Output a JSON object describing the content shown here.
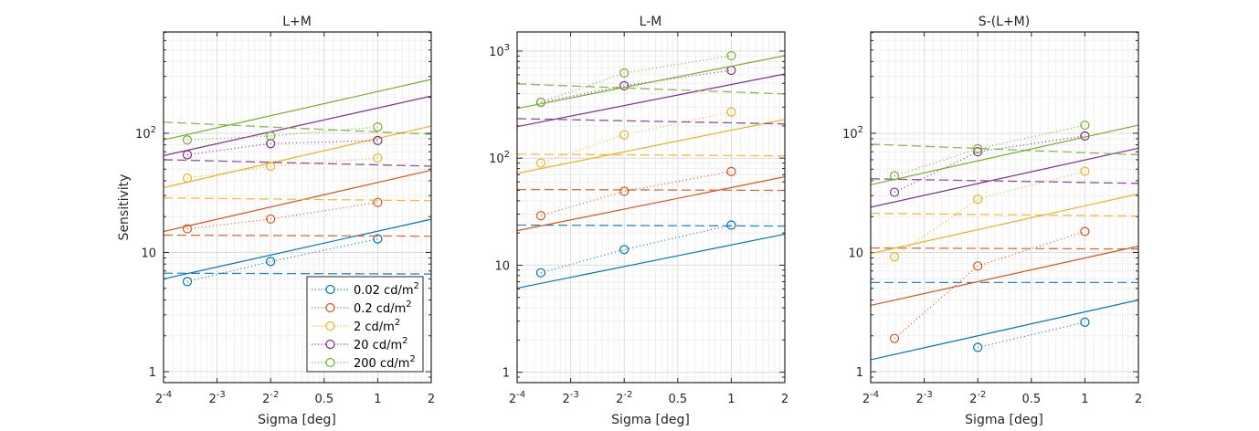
{
  "chart_data": [
    {
      "type": "line",
      "title": "L+M",
      "xlabel": "Sigma [deg]",
      "ylabel": "Sensitivity",
      "xscale": "log2",
      "yscale": "log10",
      "xlim": [
        0.0625,
        2
      ],
      "ylim": [
        0.81,
        708
      ],
      "grid": true,
      "xticks": [
        {
          "value": 0.0625,
          "base": "2",
          "exp": "-4"
        },
        {
          "value": 0.125,
          "base": "2",
          "exp": "-3"
        },
        {
          "value": 0.25,
          "base": "2",
          "exp": "-2"
        },
        {
          "value": 0.5,
          "label": "0.5"
        },
        {
          "value": 1,
          "label": "1"
        },
        {
          "value": 2,
          "label": "2"
        }
      ],
      "yticks": [
        {
          "value": 1,
          "label": "1"
        },
        {
          "value": 10,
          "label": "10"
        },
        {
          "value": 100,
          "base": "10",
          "exp": "2"
        }
      ],
      "legend": {
        "placement": "bottom-right",
        "entries": [
          "0.02 cd/m",
          "0.2 cd/m",
          "2 cd/m",
          "20 cd/m",
          "200 cd/m"
        ],
        "superscript": "2"
      },
      "series": [
        {
          "name": "0.02 cd/m2",
          "color": "#0072BD",
          "measured": {
            "x": [
              0.085,
              0.25,
              1
            ],
            "y": [
              5.7,
              8.4,
              13.0
            ]
          },
          "model_fit": {
            "x": [
              0.0625,
              2
            ],
            "y": [
              6.0,
              19.0
            ]
          },
          "model_dashed": {
            "x": [
              0.0625,
              2
            ],
            "y": [
              6.7,
              6.6
            ]
          }
        },
        {
          "name": "0.2 cd/m2",
          "color": "#D95319",
          "measured": {
            "x": [
              0.085,
              0.25,
              1
            ],
            "y": [
              15.8,
              19.1,
              26.3
            ]
          },
          "model_fit": {
            "x": [
              0.0625,
              2
            ],
            "y": [
              15.0,
              49.0
            ]
          },
          "model_dashed": {
            "x": [
              0.0625,
              2
            ],
            "y": [
              14.0,
              13.7
            ]
          }
        },
        {
          "name": "2 cd/m2",
          "color": "#EDB120",
          "measured": {
            "x": [
              0.085,
              0.25,
              1
            ],
            "y": [
              42,
              53,
              62
            ]
          },
          "model_fit": {
            "x": [
              0.0625,
              2
            ],
            "y": [
              35,
              115
            ]
          },
          "model_dashed": {
            "x": [
              0.0625,
              2
            ],
            "y": [
              28.7,
              27.2
            ]
          }
        },
        {
          "name": "20 cd/m2",
          "color": "#7E2F8E",
          "measured": {
            "x": [
              0.085,
              0.25,
              1
            ],
            "y": [
              66,
              82,
              87
            ]
          },
          "model_fit": {
            "x": [
              0.0625,
              2
            ],
            "y": [
              65,
              205
            ]
          },
          "model_dashed": {
            "x": [
              0.0625,
              2
            ],
            "y": [
              60,
              53
            ]
          }
        },
        {
          "name": "200 cd/m2",
          "color": "#77AC30",
          "measured": {
            "x": [
              0.085,
              0.25,
              1
            ],
            "y": [
              88,
              95,
              113
            ]
          },
          "model_fit": {
            "x": [
              0.0625,
              2
            ],
            "y": [
              88,
              283
            ]
          },
          "model_dashed": {
            "x": [
              0.0625,
              2
            ],
            "y": [
              124,
              98
            ]
          }
        }
      ]
    },
    {
      "type": "line",
      "title": "L-M",
      "xlabel": "Sigma [deg]",
      "ylabel": "",
      "xscale": "log2",
      "yscale": "log10",
      "xlim": [
        0.0625,
        2
      ],
      "ylim": [
        0.8,
        1510
      ],
      "grid": true,
      "xticks": [
        {
          "value": 0.0625,
          "base": "2",
          "exp": "-4"
        },
        {
          "value": 0.125,
          "base": "2",
          "exp": "-3"
        },
        {
          "value": 0.25,
          "base": "2",
          "exp": "-2"
        },
        {
          "value": 0.5,
          "label": "0.5"
        },
        {
          "value": 1,
          "label": "1"
        },
        {
          "value": 2,
          "label": "2"
        }
      ],
      "yticks": [
        {
          "value": 1,
          "label": "1"
        },
        {
          "value": 10,
          "label": "10"
        },
        {
          "value": 100,
          "base": "10",
          "exp": "2"
        },
        {
          "value": 1000,
          "base": "10",
          "exp": "3"
        }
      ],
      "series": [
        {
          "name": "0.02 cd/m2",
          "color": "#0072BD",
          "measured": {
            "x": [
              0.085,
              0.25,
              1
            ],
            "y": [
              8.5,
              14,
              23.7
            ]
          },
          "model_fit": {
            "x": [
              0.0625,
              2
            ],
            "y": [
              6.1,
              19.5
            ]
          },
          "model_dashed": {
            "x": [
              0.0625,
              2
            ],
            "y": [
              23.7,
              23.2
            ]
          }
        },
        {
          "name": "0.2 cd/m2",
          "color": "#D95319",
          "measured": {
            "x": [
              0.085,
              0.25,
              1
            ],
            "y": [
              29,
              49,
              75
            ]
          },
          "model_fit": {
            "x": [
              0.0625,
              2
            ],
            "y": [
              21,
              67
            ]
          },
          "model_dashed": {
            "x": [
              0.0625,
              2
            ],
            "y": [
              51,
              50
            ]
          }
        },
        {
          "name": "2 cd/m2",
          "color": "#EDB120",
          "measured": {
            "x": [
              0.085,
              0.25,
              1
            ],
            "y": [
              90,
              165,
              270
            ]
          },
          "model_fit": {
            "x": [
              0.0625,
              2
            ],
            "y": [
              72,
              230
            ]
          },
          "model_dashed": {
            "x": [
              0.0625,
              2
            ],
            "y": [
              109,
              105
            ]
          }
        },
        {
          "name": "20 cd/m2",
          "color": "#7E2F8E",
          "measured": {
            "x": [
              0.085,
              0.25,
              1
            ],
            "y": [
              333,
              475,
              662
            ]
          },
          "model_fit": {
            "x": [
              0.0625,
              2
            ],
            "y": [
              197,
              612
            ]
          },
          "model_dashed": {
            "x": [
              0.0625,
              2
            ],
            "y": [
              234,
              209
            ]
          }
        },
        {
          "name": "200 cd/m2",
          "color": "#77AC30",
          "measured": {
            "x": [
              0.085,
              0.25,
              1
            ],
            "y": [
              333,
              625,
              905
            ]
          },
          "model_fit": {
            "x": [
              0.0625,
              2
            ],
            "y": [
              291,
              906
            ]
          },
          "model_dashed": {
            "x": [
              0.0625,
              2
            ],
            "y": [
              494,
              398
            ]
          }
        }
      ]
    },
    {
      "type": "line",
      "title": "S-(L+M)",
      "xlabel": "Sigma [deg]",
      "ylabel": "",
      "xscale": "log2",
      "yscale": "log10",
      "xlim": [
        0.0625,
        2
      ],
      "ylim": [
        0.81,
        708
      ],
      "grid": true,
      "xticks": [
        {
          "value": 0.0625,
          "base": "2",
          "exp": "-4"
        },
        {
          "value": 0.125,
          "base": "2",
          "exp": "-3"
        },
        {
          "value": 0.25,
          "base": "2",
          "exp": "-2"
        },
        {
          "value": 0.5,
          "label": "0.5"
        },
        {
          "value": 1,
          "label": "1"
        },
        {
          "value": 2,
          "label": "2"
        }
      ],
      "yticks": [
        {
          "value": 1,
          "label": "1"
        },
        {
          "value": 10,
          "label": "10"
        },
        {
          "value": 100,
          "base": "10",
          "exp": "2"
        }
      ],
      "series": [
        {
          "name": "0.02 cd/m2",
          "color": "#0072BD",
          "measured": {
            "x": [
              0.25,
              1
            ],
            "y": [
              1.6,
              2.6
            ]
          },
          "model_fit": {
            "x": [
              0.0625,
              2
            ],
            "y": [
              1.26,
              4.0
            ]
          },
          "model_dashed": {
            "x": [
              0.0625,
              2
            ],
            "y": [
              5.6,
              5.6
            ]
          }
        },
        {
          "name": "0.2 cd/m2",
          "color": "#D95319",
          "measured": {
            "x": [
              0.085,
              0.25,
              1
            ],
            "y": [
              1.9,
              7.7,
              15
            ]
          },
          "model_fit": {
            "x": [
              0.0625,
              2
            ],
            "y": [
              3.6,
              11.3
            ]
          },
          "model_dashed": {
            "x": [
              0.0625,
              2
            ],
            "y": [
              10.9,
              10.7
            ]
          }
        },
        {
          "name": "2 cd/m2",
          "color": "#EDB120",
          "measured": {
            "x": [
              0.085,
              0.25,
              1
            ],
            "y": [
              9.2,
              28,
              48
            ]
          },
          "model_fit": {
            "x": [
              0.0625,
              2
            ],
            "y": [
              9.8,
              31
            ]
          },
          "model_dashed": {
            "x": [
              0.0625,
              2
            ],
            "y": [
              21.3,
              20.2
            ]
          }
        },
        {
          "name": "20 cd/m2",
          "color": "#7E2F8E",
          "measured": {
            "x": [
              0.085,
              0.25,
              1
            ],
            "y": [
              32,
              70,
              95
            ]
          },
          "model_fit": {
            "x": [
              0.0625,
              2
            ],
            "y": [
              24,
              75
            ]
          },
          "model_dashed": {
            "x": [
              0.0625,
              2
            ],
            "y": [
              41.5,
              38
            ]
          }
        },
        {
          "name": "200 cd/m2",
          "color": "#77AC30",
          "measured": {
            "x": [
              0.085,
              0.25,
              1
            ],
            "y": [
              44,
              74,
              117
            ]
          },
          "model_fit": {
            "x": [
              0.0625,
              2
            ],
            "y": [
              37,
              117
            ]
          },
          "model_dashed": {
            "x": [
              0.0625,
              2
            ],
            "y": [
              81,
              66
            ]
          }
        }
      ]
    }
  ]
}
